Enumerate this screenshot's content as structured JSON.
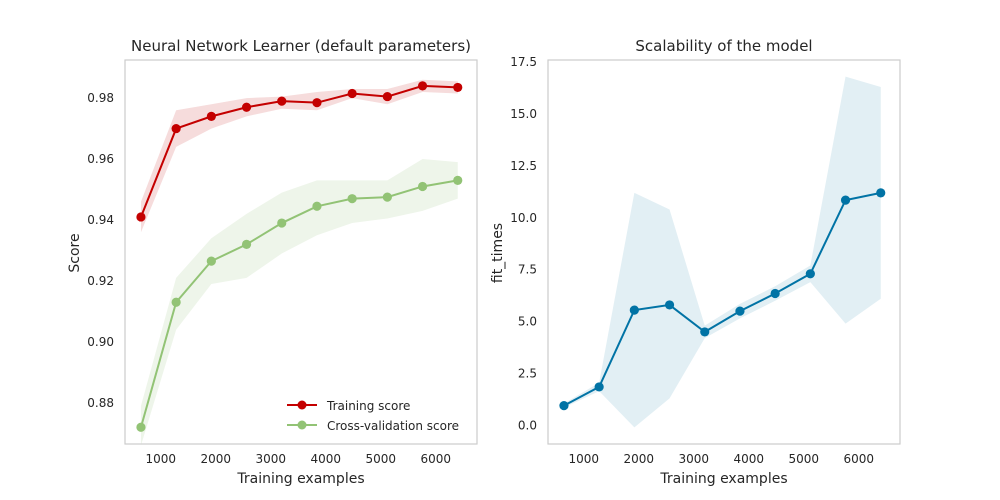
{
  "chart_data": [
    {
      "type": "line",
      "title": "Neural Network Learner (default parameters)",
      "xlabel": "Training examples",
      "ylabel": "Score",
      "xlim": [
        350,
        6750
      ],
      "ylim": [
        0.8665,
        0.9925
      ],
      "xticks": [
        "1000",
        "2000",
        "3000",
        "4000",
        "5000",
        "6000"
      ],
      "xtick_values": [
        1000,
        2000,
        3000,
        4000,
        5000,
        6000
      ],
      "yticks": [
        "0.88",
        "0.90",
        "0.92",
        "0.94",
        "0.96",
        "0.98"
      ],
      "ytick_values": [
        0.88,
        0.9,
        0.92,
        0.94,
        0.96,
        0.98
      ],
      "grid": false,
      "legend_position": "bottom-right",
      "x": [
        640,
        1280,
        1920,
        2560,
        3200,
        3840,
        4480,
        5120,
        5760,
        6400
      ],
      "series": [
        {
          "name": "Training score",
          "color": "#c40000",
          "band_color": "#f6dcdc",
          "values": [
            0.941,
            0.97,
            0.974,
            0.977,
            0.979,
            0.9785,
            0.9815,
            0.9805,
            0.984,
            0.9835
          ],
          "band_upper": [
            0.946,
            0.976,
            0.978,
            0.98,
            0.9805,
            0.982,
            0.983,
            0.983,
            0.986,
            0.9855
          ],
          "band_lower": [
            0.936,
            0.964,
            0.97,
            0.974,
            0.9765,
            0.976,
            0.98,
            0.978,
            0.982,
            0.9815
          ]
        },
        {
          "name": "Cross-validation score",
          "color": "#92c375",
          "band_color": "#eef5ea",
          "values": [
            0.872,
            0.913,
            0.9265,
            0.932,
            0.939,
            0.9445,
            0.947,
            0.9475,
            0.951,
            0.953
          ],
          "band_upper": [
            0.879,
            0.921,
            0.934,
            0.942,
            0.949,
            0.953,
            0.953,
            0.953,
            0.96,
            0.959
          ],
          "band_lower": [
            0.866,
            0.904,
            0.919,
            0.921,
            0.929,
            0.935,
            0.939,
            0.9405,
            0.943,
            0.947
          ]
        }
      ]
    },
    {
      "type": "line",
      "title": "Scalability of the model",
      "xlabel": "Training examples",
      "ylabel": "fit_times",
      "xlim": [
        350,
        6750
      ],
      "ylim": [
        -0.9,
        17.6
      ],
      "xticks": [
        "1000",
        "2000",
        "3000",
        "4000",
        "5000",
        "6000"
      ],
      "xtick_values": [
        1000,
        2000,
        3000,
        4000,
        5000,
        6000
      ],
      "yticks": [
        "0.0",
        "2.5",
        "5.0",
        "7.5",
        "10.0",
        "12.5",
        "15.0",
        "17.5"
      ],
      "ytick_values": [
        0.0,
        2.5,
        5.0,
        7.5,
        10.0,
        12.5,
        15.0,
        17.5
      ],
      "grid": false,
      "x": [
        640,
        1280,
        1920,
        2560,
        3200,
        3840,
        4480,
        5120,
        5760,
        6400
      ],
      "series": [
        {
          "color": "#0173a5",
          "band_color": "#e2eff4",
          "values": [
            0.95,
            1.85,
            5.55,
            5.8,
            4.5,
            5.5,
            6.35,
            7.3,
            10.85,
            11.2
          ],
          "band_upper": [
            1.05,
            2.05,
            11.2,
            10.4,
            4.8,
            5.85,
            6.7,
            7.7,
            16.8,
            16.3
          ],
          "band_lower": [
            0.85,
            1.65,
            -0.1,
            1.3,
            4.2,
            5.15,
            6.0,
            6.9,
            4.9,
            6.1
          ]
        }
      ]
    }
  ]
}
